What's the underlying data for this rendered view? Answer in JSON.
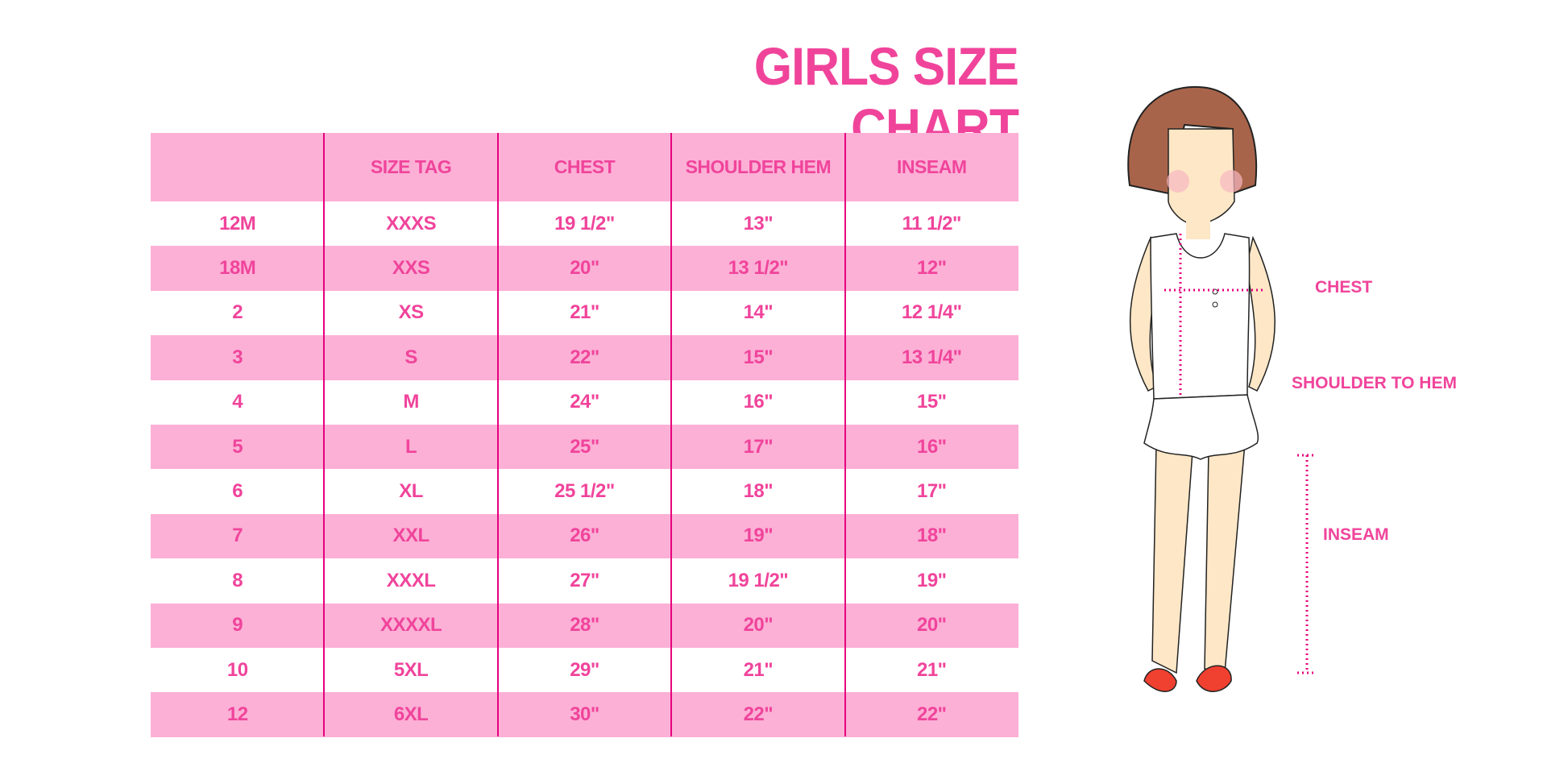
{
  "title": "GIRLS SIZE CHART",
  "table": {
    "headers": [
      "",
      "SIZE TAG",
      "CHEST",
      "SHOULDER HEM",
      "INSEAM"
    ],
    "rows": [
      [
        "12M",
        "XXXS",
        "19 1/2\"",
        "13\"",
        "11 1/2\""
      ],
      [
        "18M",
        "XXS",
        "20\"",
        "13 1/2\"",
        "12\""
      ],
      [
        "2",
        "XS",
        "21\"",
        "14\"",
        "12 1/4\""
      ],
      [
        "3",
        "S",
        "22\"",
        "15\"",
        "13 1/4\""
      ],
      [
        "4",
        "M",
        "24\"",
        "16\"",
        "15\""
      ],
      [
        "5",
        "L",
        "25\"",
        "17\"",
        "16\""
      ],
      [
        "6",
        "XL",
        "25 1/2\"",
        "18\"",
        "17\""
      ],
      [
        "7",
        "XXL",
        "26\"",
        "19\"",
        "18\""
      ],
      [
        "8",
        "XXXL",
        "27\"",
        "19 1/2\"",
        "19\""
      ],
      [
        "9",
        "XXXXL",
        "28\"",
        "20\"",
        "20\""
      ],
      [
        "10",
        "5XL",
        "29\"",
        "21\"",
        "21\""
      ],
      [
        "12",
        "6XL",
        "30\"",
        "22\"",
        "22\""
      ]
    ]
  },
  "figure": {
    "chest_label": "CHEST",
    "shoulder_label": "SHOULDER TO HEM",
    "inseam_label": "INSEAM"
  },
  "colors": {
    "accent": "#f0449b",
    "row_pink": "#fcb0d6",
    "divider": "#e6007e"
  }
}
